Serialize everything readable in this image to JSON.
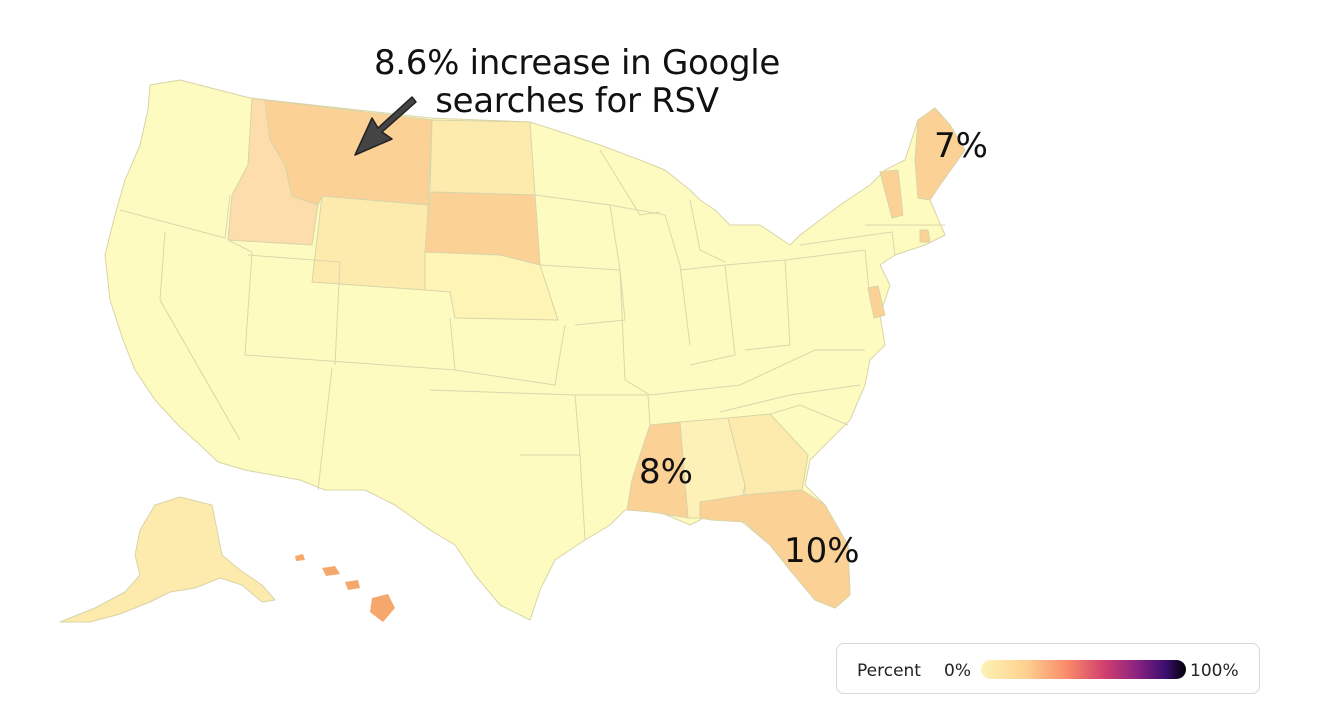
{
  "headline": {
    "line1": "8.6% increase in Google",
    "line2": "searches for RSV"
  },
  "labels": {
    "maine": "7%",
    "mississippi": "8%",
    "florida": "10%"
  },
  "legend": {
    "title": "Percent",
    "min_label": "0%",
    "max_label": "100%",
    "scale_colors": [
      "#fcf3b6",
      "#fed18f",
      "#f98a6a",
      "#d2416e",
      "#8b2281",
      "#3b0f70",
      "#000004"
    ]
  },
  "colors": {
    "base": "#fdfbc0",
    "light": "#fcebad",
    "mid": "#fbd196",
    "strong": "#f9c487",
    "hawaii": "#f6a86c",
    "border": "#d9d4a8"
  },
  "state_values": {
    "montana": 8.6,
    "maine": 7,
    "mississippi": 8,
    "florida": 10
  }
}
